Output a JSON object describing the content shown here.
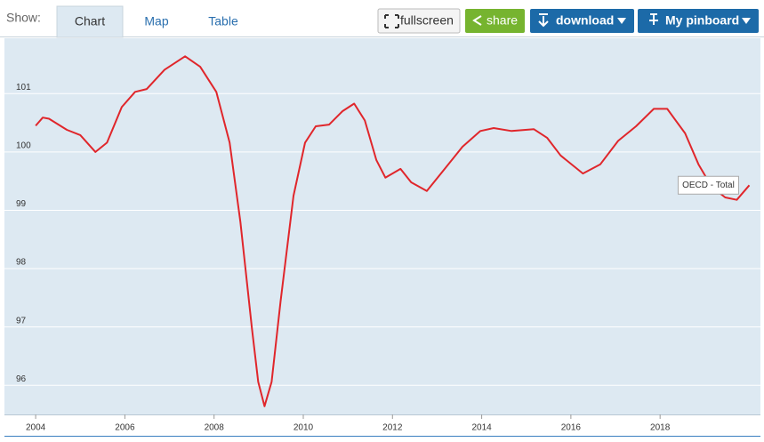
{
  "ui": {
    "show_label": "Show:",
    "tabs": [
      "Chart",
      "Map",
      "Table"
    ],
    "buttons": [
      "fullscreen",
      "share",
      "download",
      "My pinboard"
    ]
  },
  "chart_data": {
    "type": "line",
    "x": [
      2004.0,
      2004.16,
      2004.3,
      2004.7,
      2005.0,
      2005.34,
      2005.6,
      2005.93,
      2006.23,
      2006.49,
      2006.89,
      2007.35,
      2007.69,
      2008.05,
      2008.35,
      2008.59,
      2008.85,
      2008.99,
      2009.13,
      2009.29,
      2009.49,
      2009.78,
      2010.04,
      2010.28,
      2010.58,
      2010.88,
      2011.14,
      2011.38,
      2011.64,
      2011.84,
      2012.18,
      2012.42,
      2012.77,
      2013.17,
      2013.57,
      2013.97,
      2014.27,
      2014.67,
      2015.17,
      2015.47,
      2015.77,
      2016.27,
      2016.66,
      2017.06,
      2017.46,
      2017.86,
      2018.16,
      2018.56,
      2018.86,
      2019.16,
      2019.46,
      2019.72,
      2020.0
    ],
    "series": [
      {
        "name": "OECD - Total",
        "color": "#e0262b",
        "values": [
          100.45,
          100.59,
          100.57,
          100.38,
          100.29,
          100.0,
          100.16,
          100.77,
          101.03,
          101.08,
          101.41,
          101.64,
          101.46,
          101.03,
          100.16,
          98.8,
          96.97,
          96.06,
          95.64,
          96.06,
          97.43,
          99.25,
          100.16,
          100.44,
          100.47,
          100.7,
          100.83,
          100.54,
          99.86,
          99.56,
          99.71,
          99.48,
          99.33,
          99.71,
          100.09,
          100.36,
          100.41,
          100.36,
          100.39,
          100.24,
          99.94,
          99.63,
          99.79,
          100.19,
          100.44,
          100.74,
          100.74,
          100.32,
          99.79,
          99.4,
          99.22,
          99.18,
          99.43
        ]
      }
    ],
    "xlim": [
      2003.3,
      2020.25
    ],
    "xticks": [
      2004,
      2006,
      2008,
      2010,
      2012,
      2014,
      2016,
      2018
    ],
    "ylim": [
      95.5,
      101.95
    ],
    "yticks": [
      96,
      97,
      98,
      99,
      100,
      101
    ],
    "grid": true
  }
}
